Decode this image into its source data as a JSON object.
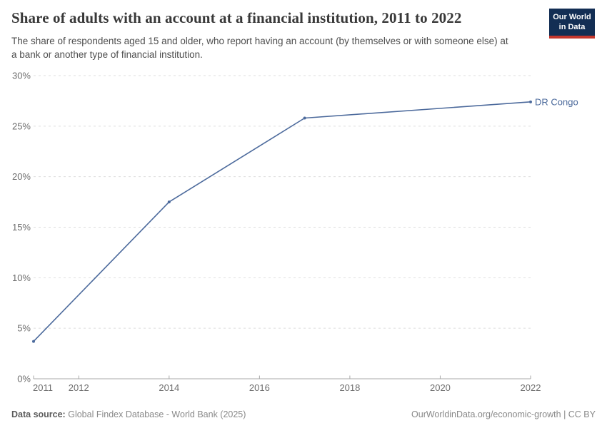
{
  "header": {
    "title": "Share of adults with an account at a financial institution, 2011 to 2022",
    "subtitle": "The share of respondents aged 15 and older, who report having an account (by themselves or with someone else) at a bank or another type of financial institution."
  },
  "logo": {
    "line1": "Our World",
    "line2": "in Data",
    "bg_color": "#132E54",
    "bar_color": "#C5372D"
  },
  "chart_data": {
    "type": "line",
    "title": "Share of adults with an account at a financial institution, 2011 to 2022",
    "x": [
      2011,
      2014,
      2017,
      2022
    ],
    "series": [
      {
        "name": "DR Congo",
        "values": [
          3.7,
          17.5,
          25.8,
          27.4
        ],
        "color": "#4C6A9C"
      }
    ],
    "xlim": [
      2011,
      2022
    ],
    "ylim": [
      0,
      30
    ],
    "yticks": [
      0,
      5,
      10,
      15,
      20,
      25,
      30
    ],
    "ytick_suffix": "%",
    "xticks": [
      2011,
      2012,
      2014,
      2016,
      2018,
      2020,
      2022
    ],
    "grid": "horizontal-dashed",
    "legend_position": "end-of-line-label",
    "grid_color": "#dddddd",
    "axis_color": "#a8a8a8",
    "tick_label_color": "#6e6e6e"
  },
  "footer": {
    "data_source_label": "Data source:",
    "data_source_value": "Global Findex Database - World Bank (2025)",
    "right_text": "OurWorldinData.org/economic-growth | CC BY"
  }
}
